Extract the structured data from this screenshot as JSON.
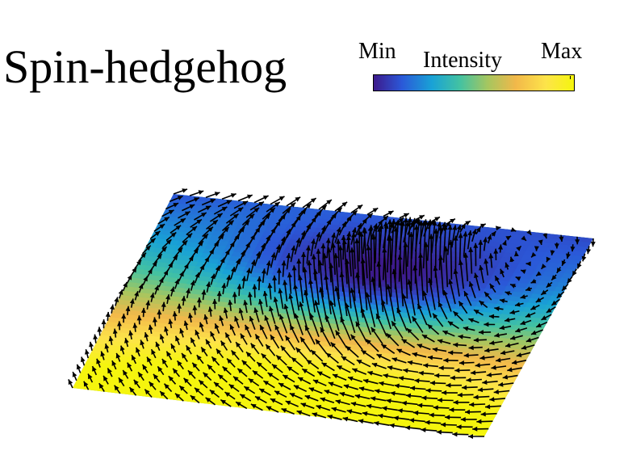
{
  "title": "Spin-hedgehog",
  "colorbar": {
    "label": "Intensity",
    "min_label": "Min",
    "max_label": "Max",
    "colors": [
      "#3d1a8c",
      "#2b58d8",
      "#19a2d6",
      "#43c2a2",
      "#a6c65f",
      "#f2b84a",
      "#fde44a",
      "#f5f50e"
    ]
  },
  "field": {
    "arrow_color": "#000000",
    "low_intensity_color": "#2c1b8a",
    "high_intensity_color": "#f7ee2a"
  }
}
